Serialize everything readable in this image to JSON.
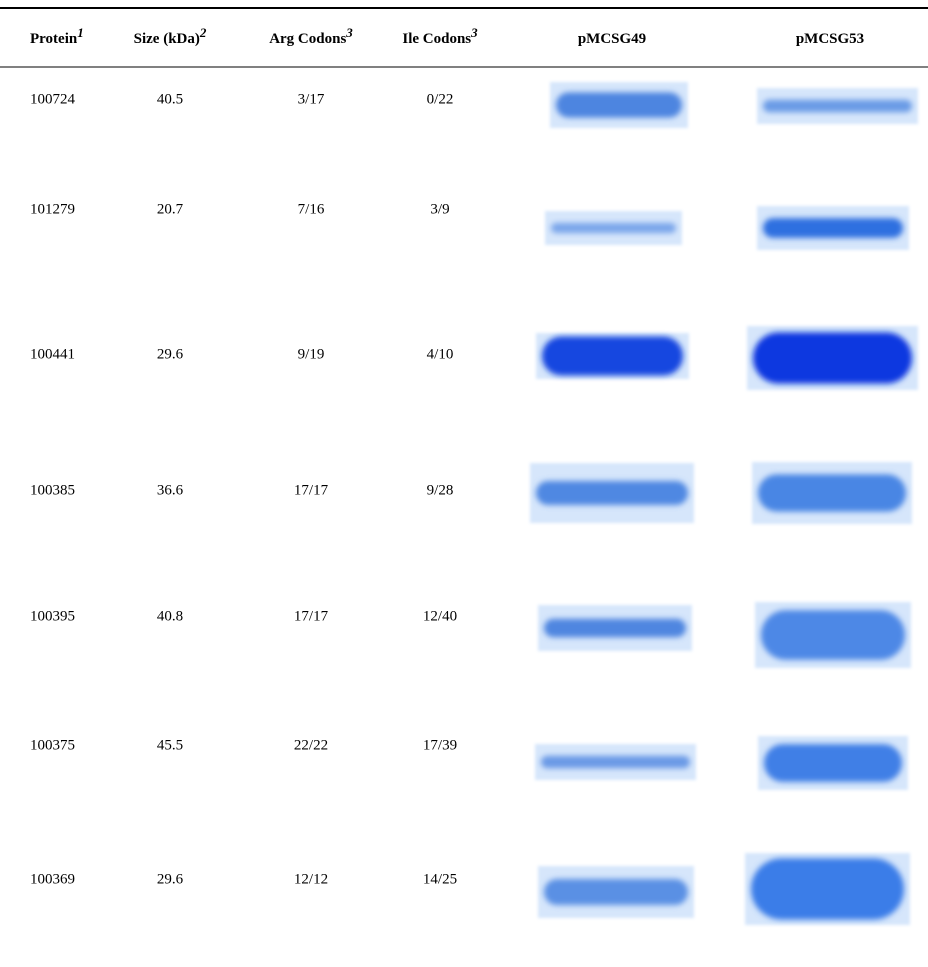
{
  "table": {
    "header": [
      {
        "text": "Protein",
        "note": "1"
      },
      {
        "text": "Size (kDa)",
        "note": "2"
      },
      {
        "text": "Arg Codons",
        "note": "3"
      },
      {
        "text": "Ile Codons",
        "note": "3"
      },
      {
        "text": "pMCSG49"
      },
      {
        "text": "pMCSG53"
      }
    ],
    "rows": [
      [
        "100724",
        "40.5",
        "3/17",
        "0/22"
      ],
      [
        "101279",
        "20.7",
        "7/16",
        "3/9"
      ],
      [
        "100441",
        "29.6",
        "9/19",
        "4/10"
      ],
      [
        "100385",
        "36.6",
        "17/17",
        "9/28"
      ],
      [
        "100395",
        "40.8",
        "17/17",
        "12/40"
      ],
      [
        "100375",
        "45.5",
        "22/22",
        "17/39"
      ],
      [
        "100369",
        "29.6",
        "12/12",
        "14/25"
      ]
    ]
  }
}
